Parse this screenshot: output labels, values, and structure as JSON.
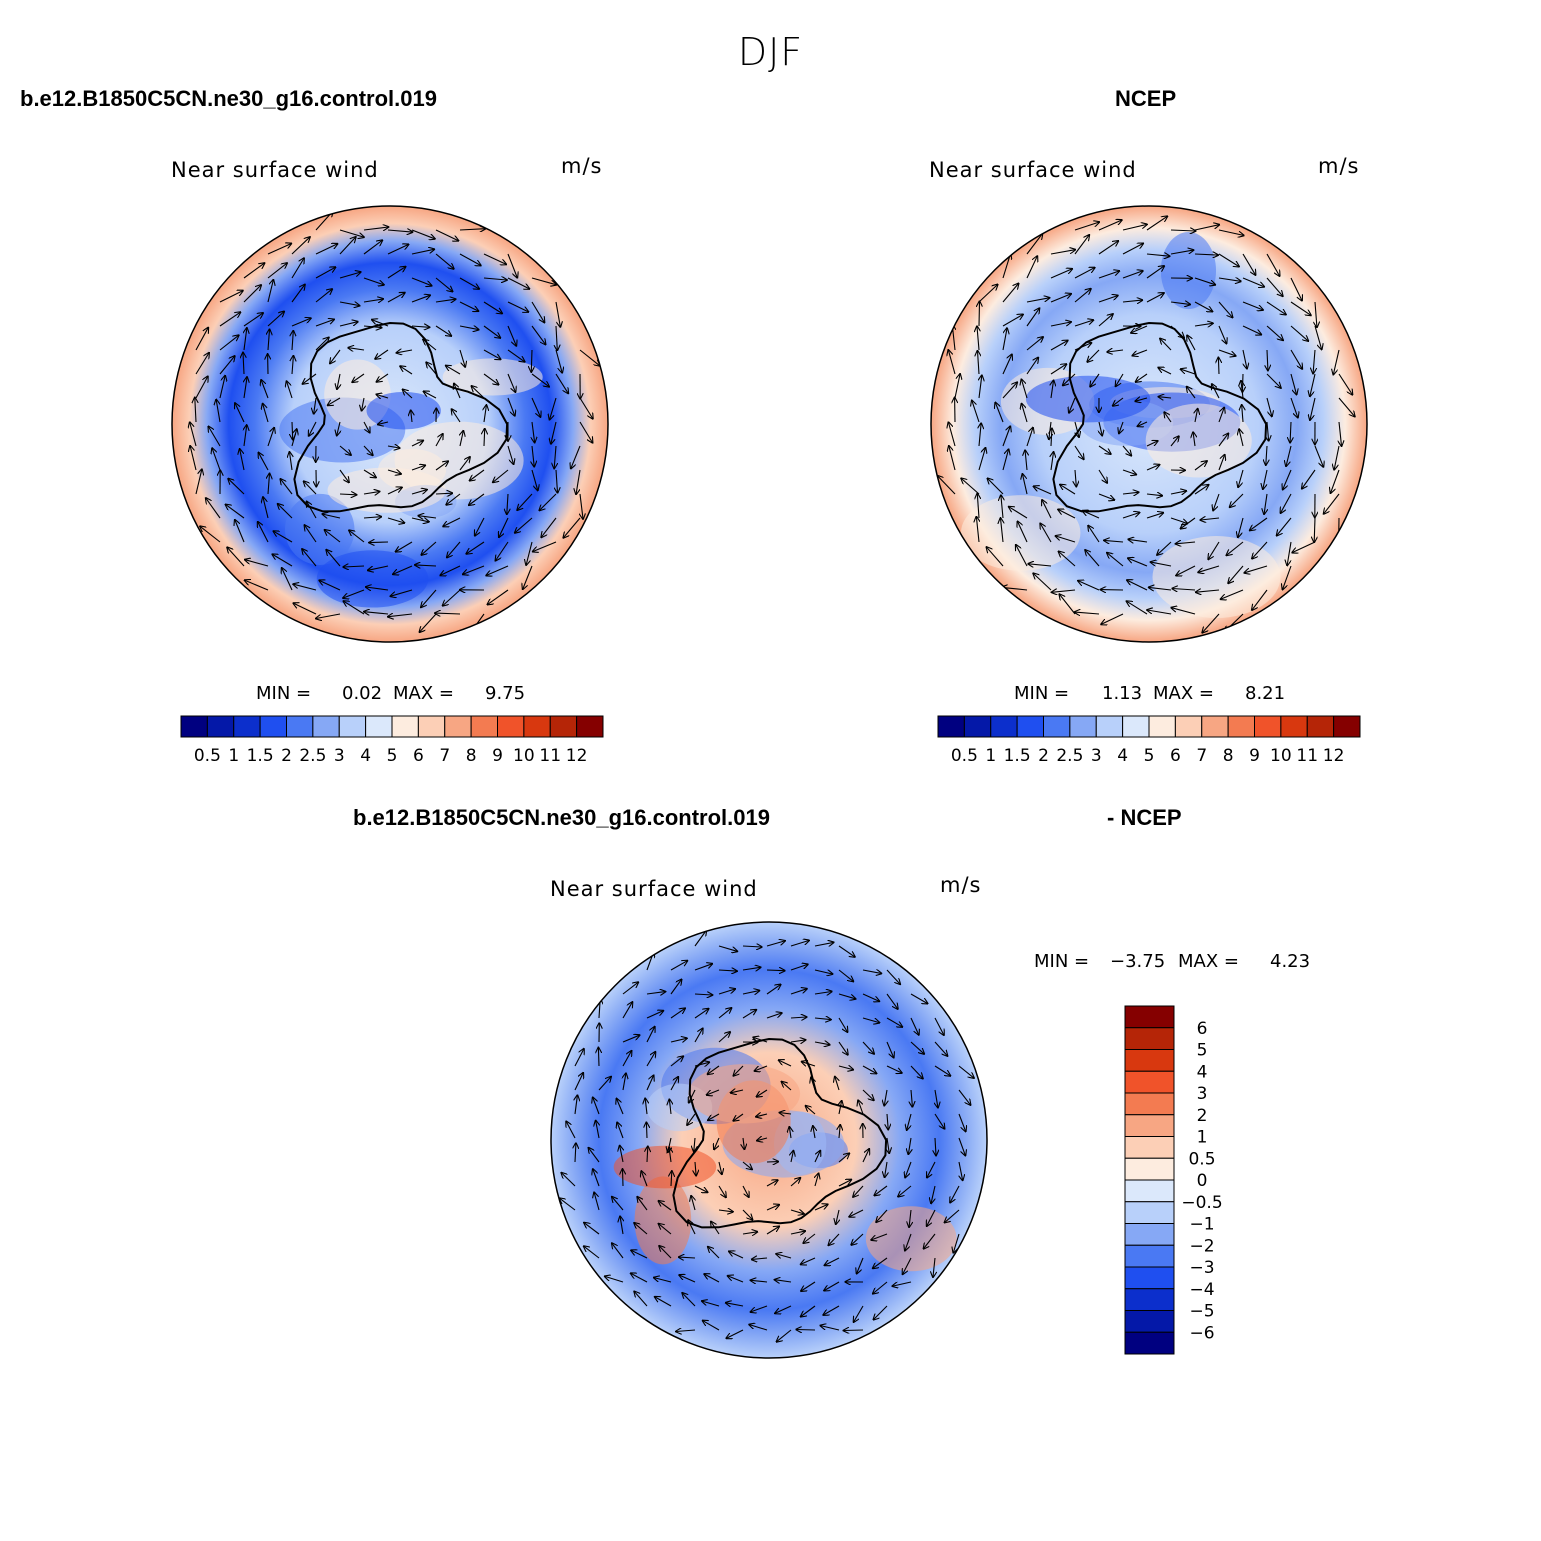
{
  "figure": {
    "title": "DJF",
    "colors": {
      "abs_levels": [
        "#000080",
        "#0418a8",
        "#0c2fcc",
        "#1f4ff0",
        "#4a79f3",
        "#86a8f5",
        "#b8d0fa",
        "#dbe8fb",
        "#fdecdf",
        "#fccfb6",
        "#f7a683",
        "#f37b51",
        "#f0532a",
        "#d8380f",
        "#b52507",
        "#850000"
      ],
      "diff_levels": [
        "#000080",
        "#0418a8",
        "#0c2fcc",
        "#1f4ff0",
        "#4a79f3",
        "#86a8f5",
        "#b8d0fa",
        "#dbe8fb",
        "#fdecdf",
        "#fccfb6",
        "#f7a683",
        "#f37b51",
        "#f0532a",
        "#d8380f",
        "#b52507",
        "#850000"
      ]
    }
  },
  "panels": {
    "model": {
      "case_label": "b.e12.B1850C5CN.ne30_g16.control.019",
      "subtitle": "Near surface wind",
      "units": "m/s",
      "min_label": "MIN =",
      "min_value": "0.02",
      "max_label": "MAX =",
      "max_value": "9.75"
    },
    "obs": {
      "case_label": "NCEP",
      "subtitle": "Near surface wind",
      "units": "m/s",
      "min_label": "MIN =",
      "min_value": "1.13",
      "max_label": "MAX =",
      "max_value": "8.21"
    },
    "diff": {
      "case_label": "b.e12.B1850C5CN.ne30_g16.control.019",
      "case_label_2": "- NCEP",
      "subtitle": "Near surface wind",
      "units": "m/s",
      "min_label": "MIN =",
      "min_value": "−3.75",
      "max_label": "MAX =",
      "max_value": "4.23"
    }
  },
  "chart_data": [
    {
      "type": "heatmap",
      "title": "Near surface wind",
      "subtitle": "b.e12.B1850C5CN.ne30_g16.control.019",
      "units": "m/s",
      "projection": "south polar stereographic with wind vectors",
      "colorbar_ticks": [
        "0.5",
        "1",
        "1.5",
        "2",
        "2.5",
        "3",
        "4",
        "5",
        "6",
        "7",
        "8",
        "9",
        "10",
        "11",
        "12"
      ],
      "min": 0.02,
      "max": 9.75
    },
    {
      "type": "heatmap",
      "title": "Near surface wind",
      "subtitle": "NCEP",
      "units": "m/s",
      "projection": "south polar stereographic with wind vectors",
      "colorbar_ticks": [
        "0.5",
        "1",
        "1.5",
        "2",
        "2.5",
        "3",
        "4",
        "5",
        "6",
        "7",
        "8",
        "9",
        "10",
        "11",
        "12"
      ],
      "min": 1.13,
      "max": 8.21
    },
    {
      "type": "heatmap",
      "title": "Near surface wind",
      "subtitle": "b.e12.B1850C5CN.ne30_g16.control.019 - NCEP",
      "units": "m/s",
      "projection": "south polar stereographic with wind vectors",
      "colorbar_ticks": [
        "6",
        "5",
        "4",
        "3",
        "2",
        "1",
        "0.5",
        "0",
        "−0.5",
        "−1",
        "−2",
        "−3",
        "−4",
        "−5",
        "−6"
      ],
      "min": -3.75,
      "max": 4.23
    }
  ]
}
